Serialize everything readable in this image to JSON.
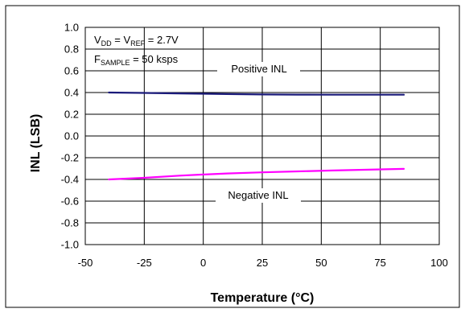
{
  "chart_data": {
    "type": "line",
    "title": "",
    "xlabel": "Temperature (°C)",
    "ylabel": "INL (LSB)",
    "xlim": [
      -50,
      100
    ],
    "ylim": [
      -1.0,
      1.0
    ],
    "xticks": [
      -50,
      -25,
      0,
      25,
      50,
      75,
      100
    ],
    "yticks": [
      1.0,
      0.8,
      0.6,
      0.4,
      0.2,
      0.0,
      -0.2,
      -0.4,
      -0.6,
      -0.8,
      -1.0
    ],
    "xtick_labels": [
      "-50",
      "-25",
      "0",
      "25",
      "50",
      "75",
      "100"
    ],
    "ytick_labels": [
      "1.0",
      "0.8",
      "0.6",
      "0.4",
      "0.2",
      "0.0",
      "-0.2",
      "-0.4",
      "-0.6",
      "-0.8",
      "-1.0"
    ],
    "grid": true,
    "series": [
      {
        "name": "Positive INL",
        "color": "#1a1a7a",
        "x": [
          -40,
          -25,
          -10,
          0,
          10,
          25,
          40,
          55,
          70,
          85
        ],
        "y": [
          0.4,
          0.396,
          0.392,
          0.389,
          0.386,
          0.382,
          0.381,
          0.38,
          0.38,
          0.38
        ]
      },
      {
        "name": "Negative INL",
        "color": "#ff00ff",
        "x": [
          -40,
          -25,
          -10,
          0,
          10,
          25,
          40,
          55,
          70,
          85
        ],
        "y": [
          -0.4,
          -0.385,
          -0.365,
          -0.355,
          -0.345,
          -0.335,
          -0.326,
          -0.318,
          -0.31,
          -0.303
        ]
      }
    ],
    "annotations": {
      "vdd_prefix": "V",
      "vdd_sub": "DD",
      "vref_mid": " = V",
      "vref_sub": "REF",
      "vref_suffix": " = 2.7V",
      "fs_prefix": "F",
      "fs_sub": "SAMPLE",
      "fs_suffix": " = 50 ksps",
      "positive_label": "Positive INL",
      "negative_label": "Negative INL"
    }
  }
}
